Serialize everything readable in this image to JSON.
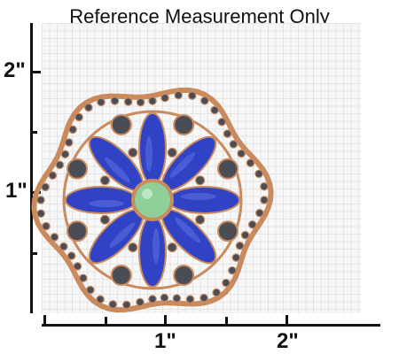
{
  "title": "Reference Measurement Only",
  "y_axis": {
    "label_top": "2\"",
    "label_mid": "1\""
  },
  "x_axis": {
    "label_left": "1\"",
    "label_right": "2\""
  },
  "colors": {
    "metal": "#c98a5e",
    "rhinestone": "#4a4d55",
    "petal": "#2f43c4",
    "center": "#8fd09a"
  }
}
